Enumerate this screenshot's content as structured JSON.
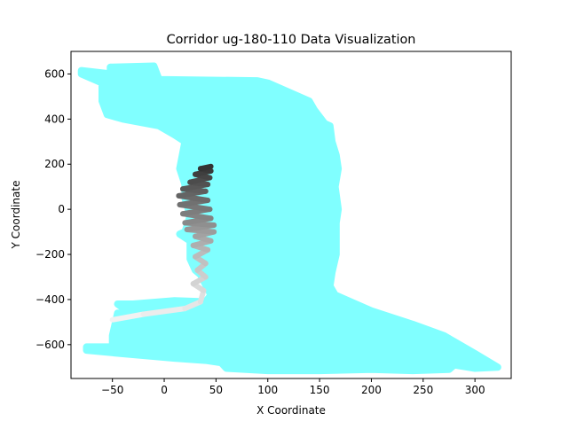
{
  "chart_data": {
    "type": "scatter",
    "title": "Corridor ug-180-110 Data Visualization",
    "xlabel": "X Coordinate",
    "ylabel": "Y Coordinate",
    "xlim": [
      -90,
      335
    ],
    "ylim": [
      -750,
      700
    ],
    "xticks": [
      -50,
      0,
      50,
      100,
      150,
      200,
      250,
      300
    ],
    "yticks": [
      -600,
      -400,
      -200,
      0,
      200,
      400,
      600
    ],
    "grid": false,
    "legend": "none",
    "colors": {
      "corridor": "#80ffff",
      "path_start": "#f2f2f2",
      "path_end": "#333333"
    },
    "series": [
      {
        "kind": "corridor-outline",
        "points": [
          [
            -80,
            615
          ],
          [
            -52,
            600
          ],
          [
            -52,
            630
          ],
          [
            -10,
            635
          ],
          [
            -5,
            575
          ],
          [
            90,
            570
          ],
          [
            100,
            560
          ],
          [
            110,
            540
          ],
          [
            140,
            480
          ],
          [
            145,
            440
          ],
          [
            155,
            380
          ],
          [
            160,
            370
          ],
          [
            162,
            300
          ],
          [
            166,
            240
          ],
          [
            168,
            180
          ],
          [
            165,
            100
          ],
          [
            168,
            0
          ],
          [
            166,
            -60
          ],
          [
            166,
            -200
          ],
          [
            162,
            -280
          ],
          [
            160,
            -340
          ],
          [
            165,
            -380
          ],
          [
            175,
            -400
          ],
          [
            200,
            -450
          ],
          [
            240,
            -510
          ],
          [
            270,
            -560
          ],
          [
            300,
            -640
          ],
          [
            322,
            -700
          ],
          [
            300,
            -705
          ],
          [
            280,
            -690
          ],
          [
            275,
            -710
          ],
          [
            240,
            -715
          ],
          [
            200,
            -710
          ],
          [
            150,
            -715
          ],
          [
            100,
            -715
          ],
          [
            60,
            -705
          ],
          [
            55,
            -680
          ],
          [
            40,
            -670
          ],
          [
            10,
            -660
          ],
          [
            -40,
            -640
          ],
          [
            -75,
            -625
          ],
          [
            -75,
            -610
          ],
          [
            -50,
            -610
          ],
          [
            -50,
            -560
          ],
          [
            -45,
            -460
          ],
          [
            -30,
            -470
          ],
          [
            -45,
            -420
          ],
          [
            -30,
            -420
          ],
          [
            10,
            -405
          ],
          [
            40,
            -410
          ],
          [
            45,
            -380
          ],
          [
            35,
            -290
          ],
          [
            30,
            -270
          ],
          [
            25,
            -220
          ],
          [
            25,
            -140
          ],
          [
            15,
            -110
          ],
          [
            20,
            -100
          ],
          [
            25,
            -30
          ],
          [
            20,
            50
          ],
          [
            20,
            110
          ],
          [
            15,
            180
          ],
          [
            20,
            300
          ],
          [
            10,
            330
          ],
          [
            -5,
            370
          ],
          [
            -40,
            400
          ],
          [
            -55,
            420
          ],
          [
            -60,
            480
          ],
          [
            -60,
            560
          ],
          [
            -80,
            600
          ]
        ]
      },
      {
        "kind": "path",
        "points": [
          [
            -50,
            -490
          ],
          [
            -20,
            -465
          ],
          [
            20,
            -440
          ],
          [
            35,
            -410
          ],
          [
            38,
            -360
          ],
          [
            28,
            -330
          ],
          [
            40,
            -300
          ],
          [
            32,
            -270
          ],
          [
            40,
            -240
          ],
          [
            30,
            -210
          ],
          [
            42,
            -180
          ],
          [
            28,
            -160
          ],
          [
            45,
            -140
          ],
          [
            30,
            -120
          ],
          [
            48,
            -100
          ],
          [
            22,
            -90
          ],
          [
            48,
            -70
          ],
          [
            20,
            -60
          ],
          [
            45,
            -40
          ],
          [
            18,
            -20
          ],
          [
            44,
            0
          ],
          [
            15,
            20
          ],
          [
            42,
            40
          ],
          [
            14,
            60
          ],
          [
            40,
            80
          ],
          [
            18,
            90
          ],
          [
            42,
            110
          ],
          [
            25,
            120
          ],
          [
            44,
            140
          ],
          [
            30,
            155
          ],
          [
            45,
            170
          ],
          [
            35,
            180
          ],
          [
            45,
            190
          ]
        ]
      }
    ]
  }
}
